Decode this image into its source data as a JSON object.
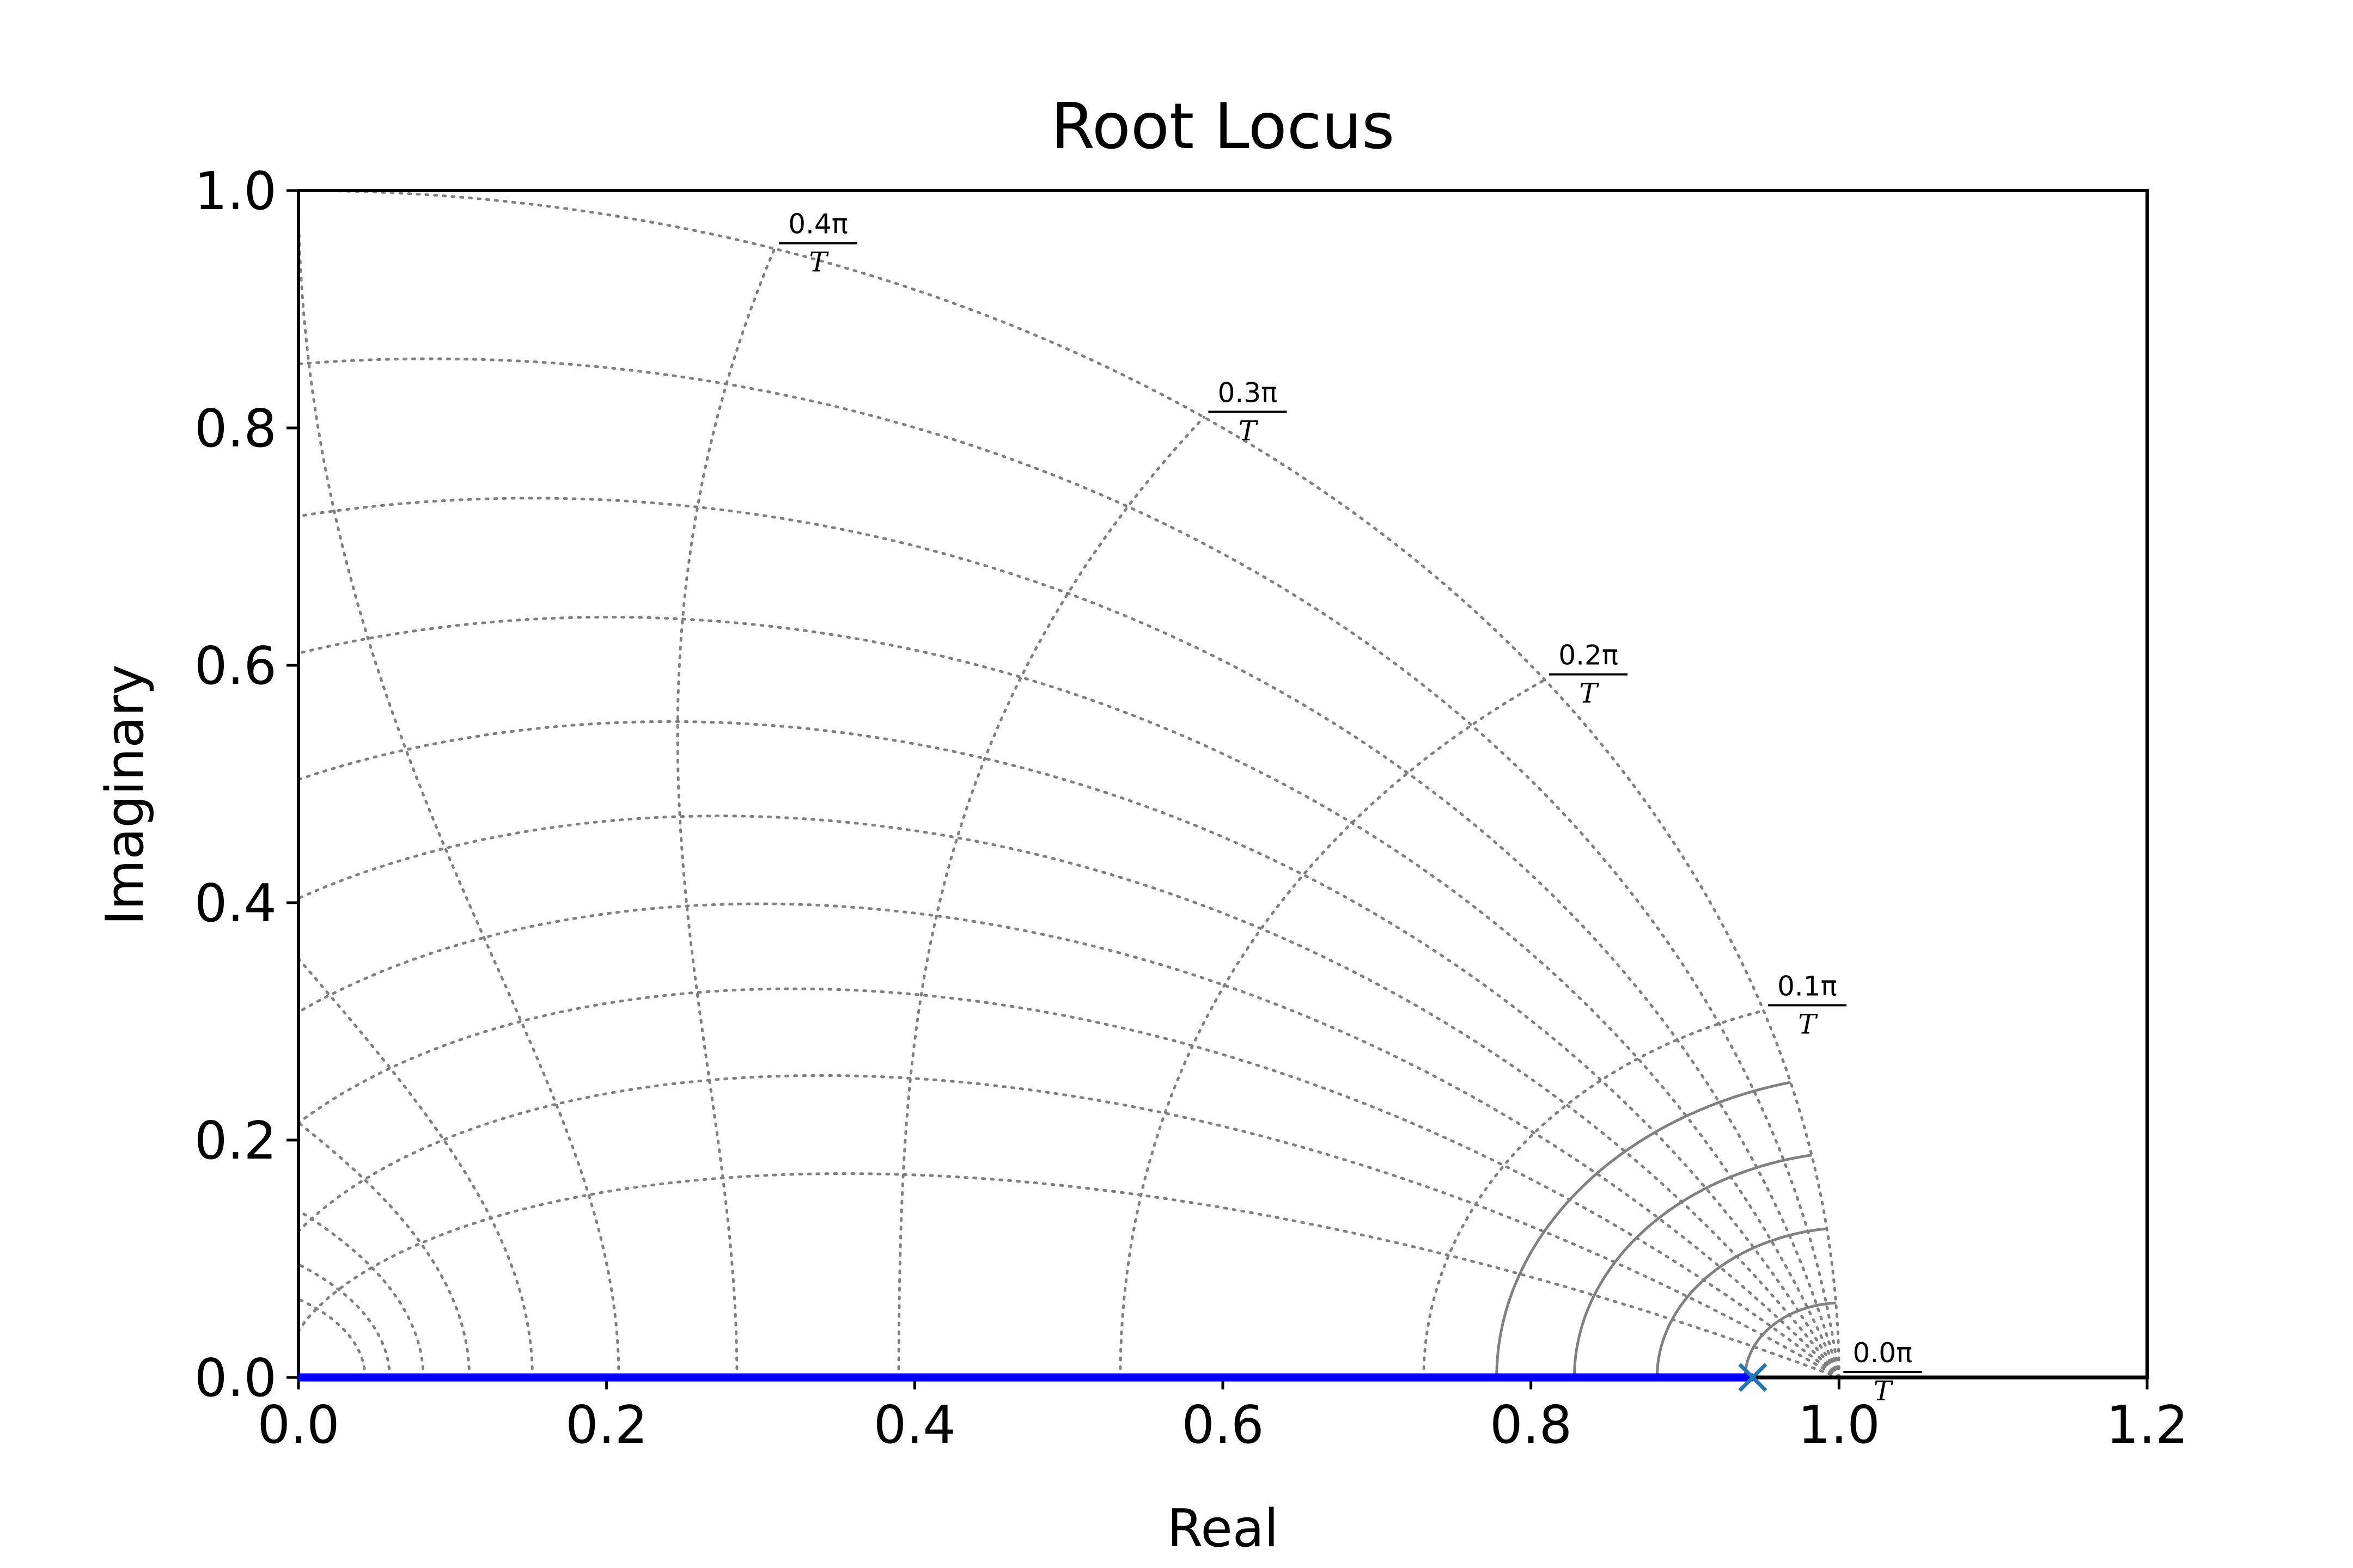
{
  "chart_data": {
    "type": "line",
    "title": "Root Locus",
    "xlabel": "Real",
    "ylabel": "Imaginary",
    "xlim": [
      0.0,
      1.2
    ],
    "ylim": [
      0.0,
      1.0
    ],
    "x_ticks": [
      "0.0",
      "0.2",
      "0.4",
      "0.6",
      "0.8",
      "1.0",
      "1.2"
    ],
    "y_ticks": [
      "0.0",
      "0.2",
      "0.4",
      "0.6",
      "0.8",
      "1.0"
    ],
    "grid": "z-plane damping and natural frequency grid (dotted)",
    "series": [
      {
        "type": "locus",
        "color": "#0000ff",
        "x": [
          0.0,
          0.944
        ],
        "y": [
          0.0,
          0.0
        ]
      }
    ],
    "poles": [
      {
        "x": 0.944,
        "y": 0.0,
        "marker": "x",
        "color": "#1f77b4"
      }
    ],
    "frequency_labels": [
      {
        "numerator": "0.0π",
        "denominator": "T",
        "value": 0.0
      },
      {
        "numerator": "0.1π",
        "denominator": "T",
        "value": 0.1
      },
      {
        "numerator": "0.2π",
        "denominator": "T",
        "value": 0.2
      },
      {
        "numerator": "0.3π",
        "denominator": "T",
        "value": 0.3
      },
      {
        "numerator": "0.4π",
        "denominator": "T",
        "value": 0.4
      }
    ],
    "damping_ratios": [
      0.0,
      0.1,
      0.2,
      0.3,
      0.4,
      0.5,
      0.6,
      0.7,
      0.8,
      0.9
    ],
    "grid_color": "#808080",
    "axis_color": "#000000"
  }
}
